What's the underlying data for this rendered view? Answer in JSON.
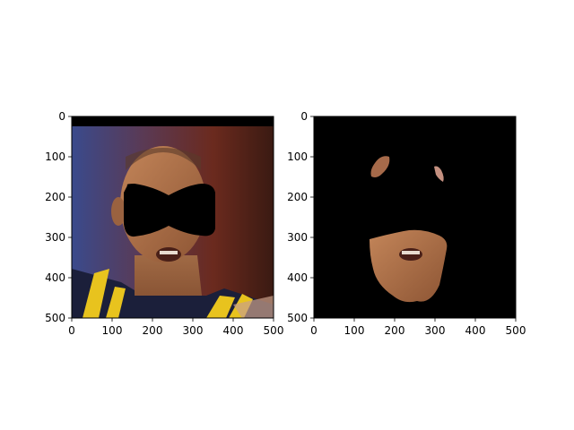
{
  "figure": {
    "background": "#ffffff"
  },
  "chart_data": [
    {
      "type": "image",
      "panel": "left",
      "content": "masked face photo (eyes region covered by black bow-tie shaped mask)",
      "xlim": [
        0,
        500
      ],
      "ylim": [
        500,
        0
      ],
      "xticks": [
        0,
        100,
        200,
        300,
        400,
        500
      ],
      "yticks": [
        0,
        100,
        200,
        300,
        400,
        500
      ],
      "xtick_labels": [
        "0",
        "100",
        "200",
        "300",
        "400",
        "500"
      ],
      "ytick_labels": [
        "0",
        "100",
        "200",
        "300",
        "400",
        "500"
      ],
      "mask_color": "#000000"
    },
    {
      "type": "image",
      "panel": "right",
      "content": "segmentation output on black background showing lower face region and two small patches near the eyes",
      "xlim": [
        0,
        500
      ],
      "ylim": [
        500,
        0
      ],
      "xticks": [
        0,
        100,
        200,
        300,
        400,
        500
      ],
      "yticks": [
        0,
        100,
        200,
        300,
        400,
        500
      ],
      "xtick_labels": [
        "0",
        "100",
        "200",
        "300",
        "400",
        "500"
      ],
      "ytick_labels": [
        "0",
        "100",
        "200",
        "300",
        "400",
        "500"
      ],
      "background_color": "#000000"
    }
  ]
}
